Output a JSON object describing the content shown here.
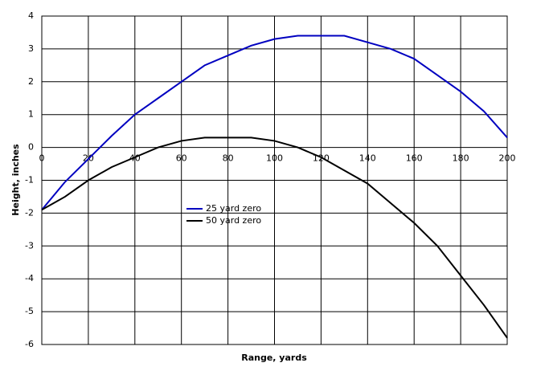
{
  "chart_data": {
    "type": "line",
    "x_label": "Range, yards",
    "y_label": "Height, inches",
    "x": [
      0,
      10,
      20,
      30,
      40,
      50,
      60,
      70,
      80,
      90,
      100,
      110,
      120,
      130,
      140,
      150,
      160,
      170,
      180,
      190,
      200
    ],
    "series": [
      {
        "name": "25 yard zero",
        "color": "#0000c0",
        "values": [
          -1.9,
          -1.05,
          -0.35,
          0.35,
          1.0,
          1.5,
          2.0,
          2.5,
          2.8,
          3.1,
          3.3,
          3.4,
          3.4,
          3.4,
          3.2,
          3.0,
          2.7,
          2.2,
          1.7,
          1.1,
          0.3
        ]
      },
      {
        "name": "50 yard zero",
        "color": "#000000",
        "values": [
          -1.9,
          -1.5,
          -1.0,
          -0.6,
          -0.3,
          0.0,
          0.2,
          0.3,
          0.3,
          0.3,
          0.2,
          0.0,
          -0.3,
          -0.7,
          -1.1,
          -1.7,
          -2.3,
          -3.0,
          -3.9,
          -4.8,
          -5.8
        ]
      }
    ],
    "xlim": [
      0,
      200
    ],
    "xticks": [
      0,
      20,
      40,
      60,
      80,
      100,
      120,
      140,
      160,
      180,
      200
    ],
    "ylim": [
      -6,
      4
    ],
    "yticks": [
      -6,
      -5,
      -4,
      -3,
      -2,
      -1,
      0,
      1,
      2,
      3,
      4
    ],
    "grid": true
  }
}
